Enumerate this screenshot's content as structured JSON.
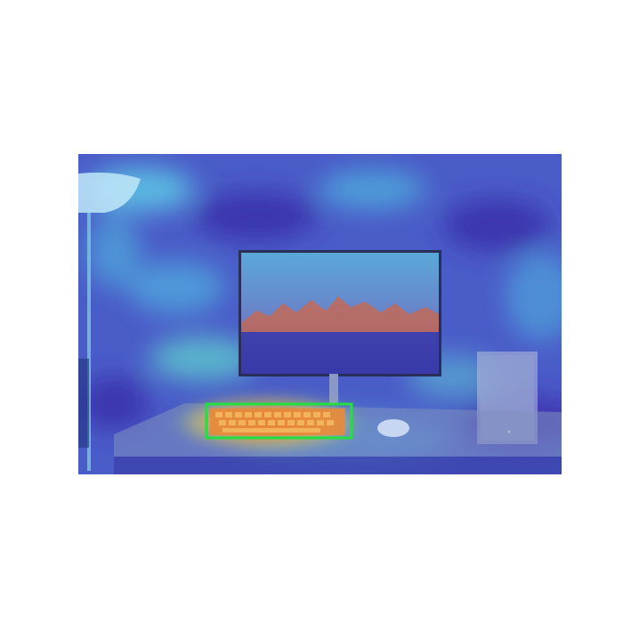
{
  "figure": {
    "description_role": "attention-heatmap-overlay",
    "colors": {
      "page_background": "#ffffff",
      "overlay_base": "#3a4fc8",
      "overlay_cool_deep": "#3a2aa8",
      "overlay_cool_light": "#4fb0e0",
      "overlay_cyan": "#5fe0e8",
      "overlay_warm": "#f0a030",
      "overlay_hot": "#e03020",
      "overlay_yellow": "#f0e050",
      "detection_box": "#22e040",
      "wall": "#8a9cc8",
      "desk": "#7f8fbf",
      "monitor_frame": "#2a2f5a",
      "mountains": "#c86850",
      "pc_case": "#b8c0dc",
      "lamp": "#c0e8f8"
    },
    "objects": [
      {
        "id": "floor-lamp",
        "icon": "lamp-icon"
      },
      {
        "id": "monitor",
        "icon": "monitor-icon"
      },
      {
        "id": "keyboard",
        "icon": "keyboard-icon",
        "highlighted": true
      },
      {
        "id": "mouse",
        "icon": "mouse-icon"
      },
      {
        "id": "pc-case",
        "icon": "pc-case-icon"
      },
      {
        "id": "desk",
        "icon": "desk-icon"
      }
    ]
  }
}
